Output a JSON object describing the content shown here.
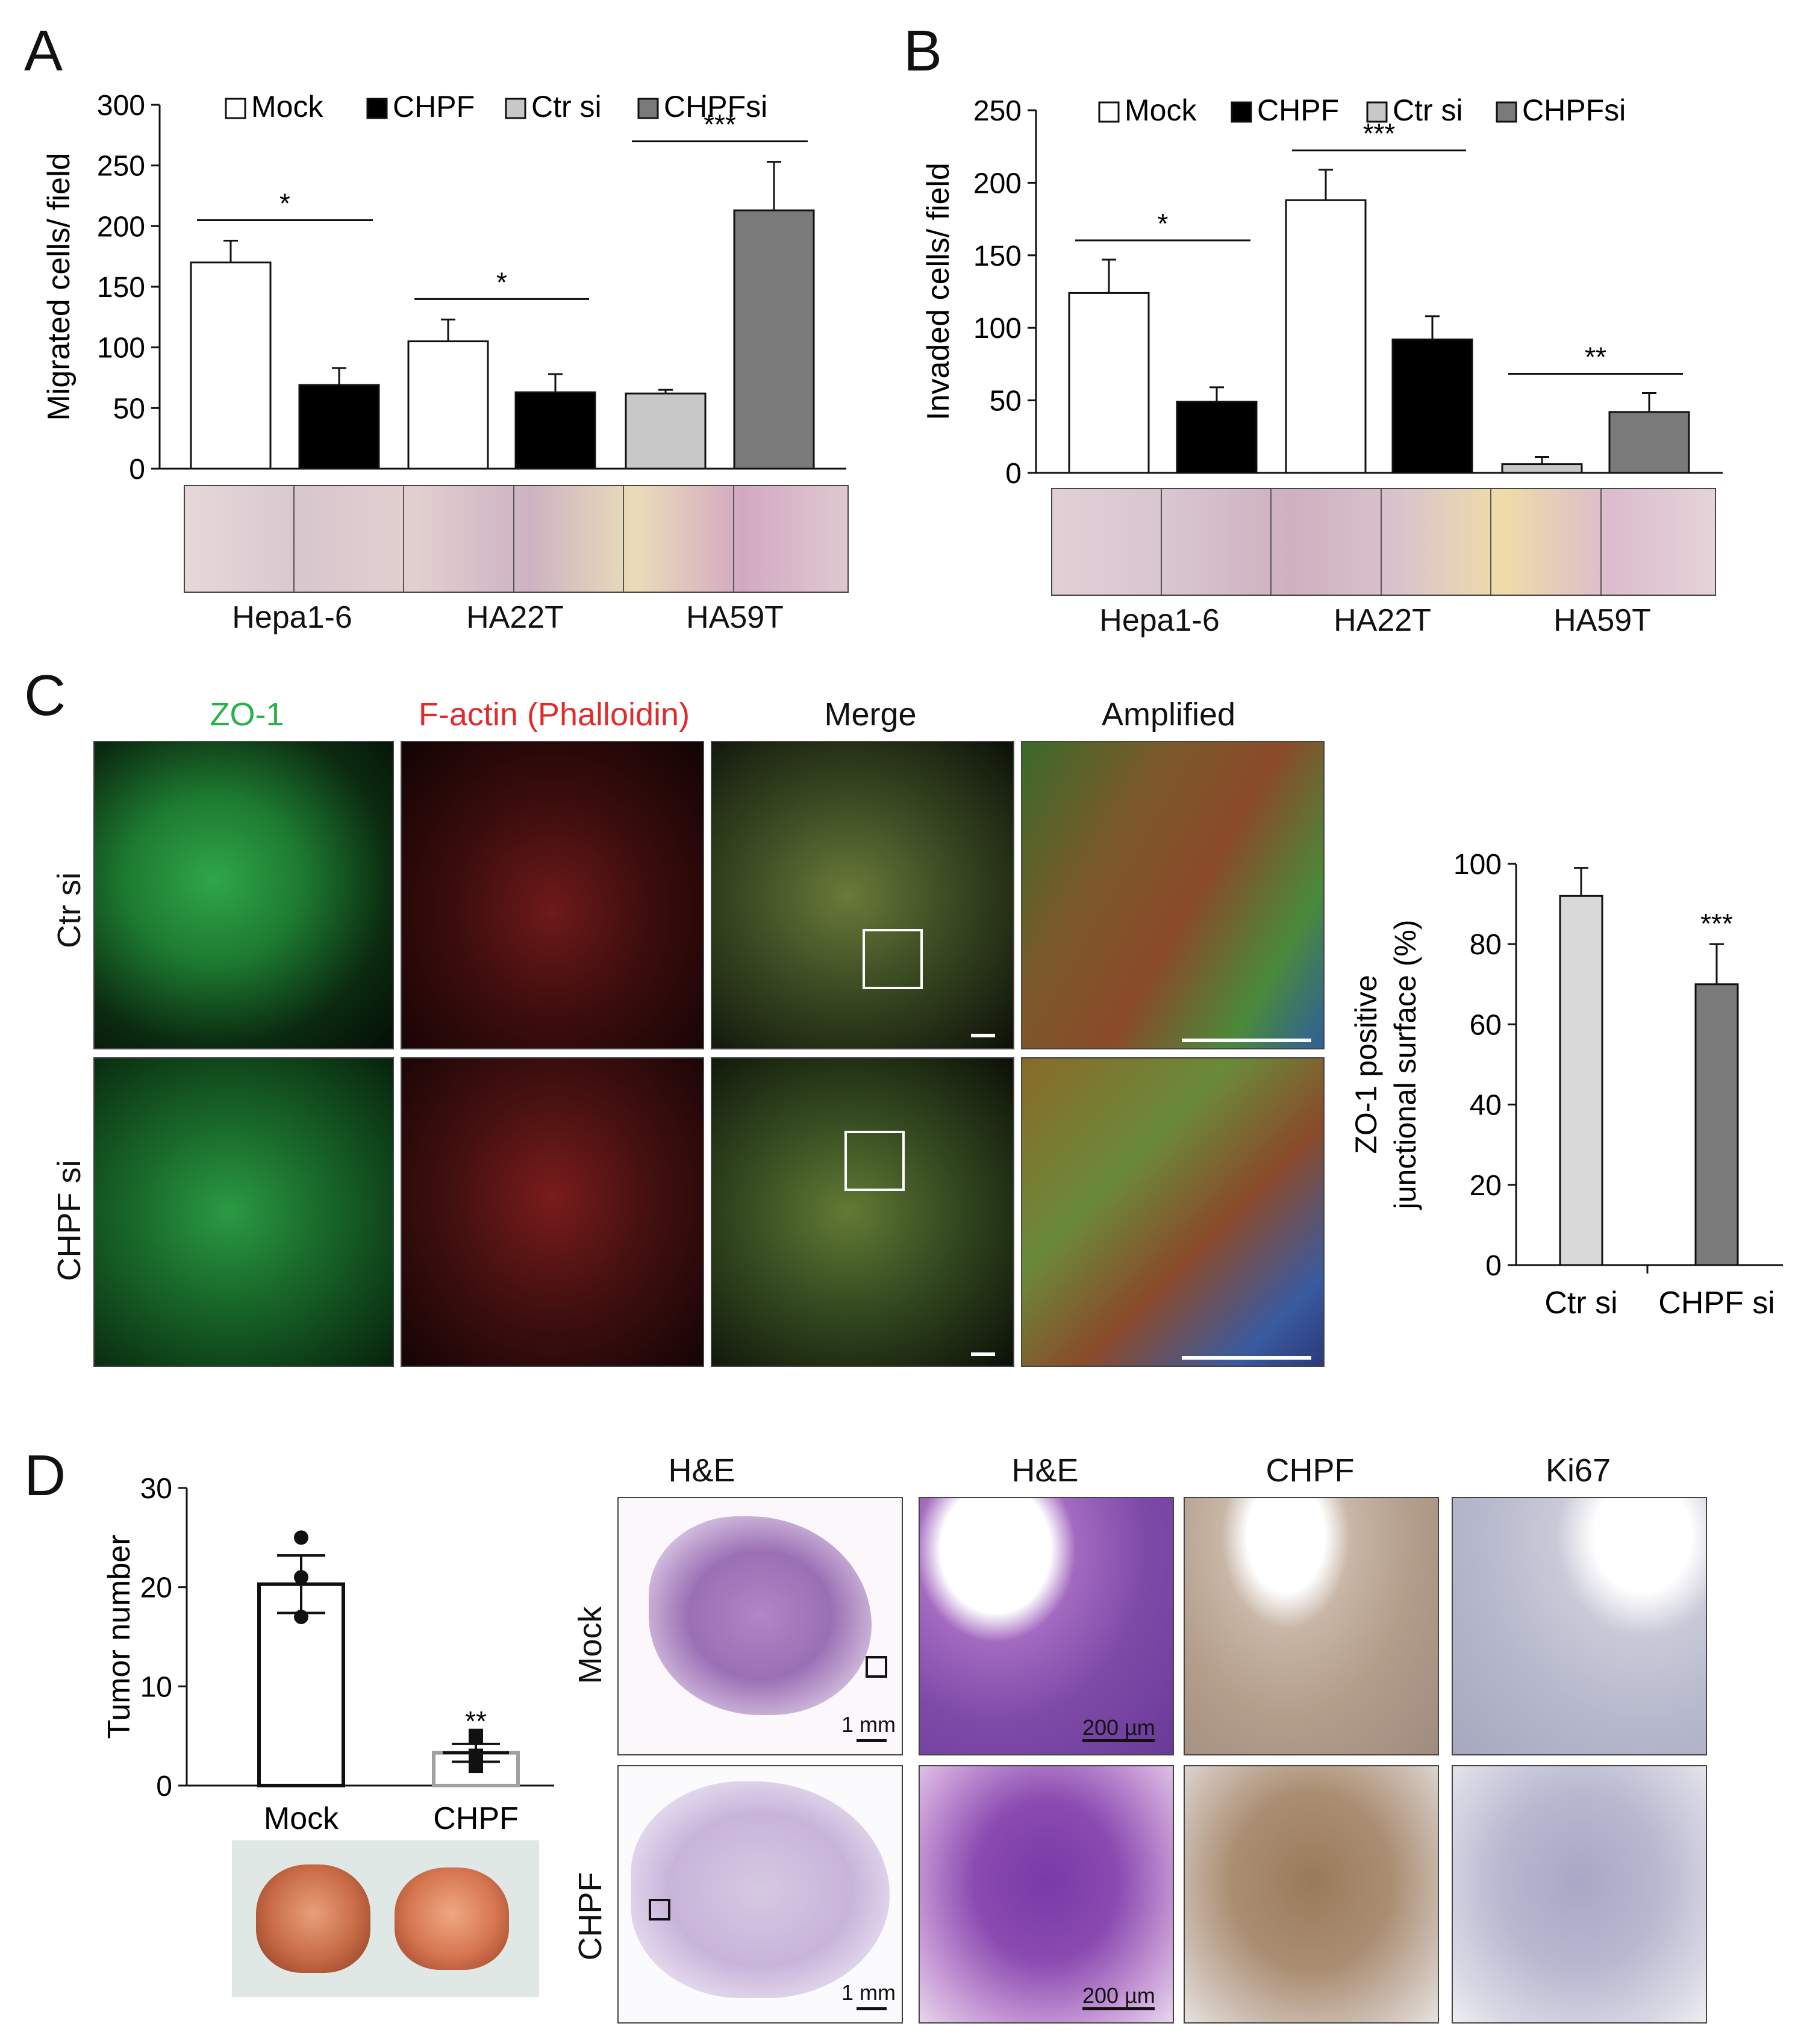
{
  "panels": {
    "a": "A",
    "b": "B",
    "c": "C",
    "d": "D"
  },
  "chart_data": [
    {
      "type": "bar",
      "panel": "A",
      "ylabel": "Migrated cells/ field",
      "ylim": [
        0,
        300
      ],
      "yticks": [
        0,
        50,
        100,
        150,
        200,
        250,
        300
      ],
      "legend": [
        "Mock",
        "CHPF",
        "Ctr si",
        "CHPFsi"
      ],
      "legend_colors": [
        "#ffffff",
        "#000000",
        "#c8c8c8",
        "#7a7a7a"
      ],
      "groups": [
        "Hepa1-6",
        "HA22T",
        "HA59T"
      ],
      "bars": [
        {
          "group": "Hepa1-6",
          "series": "Mock",
          "value": 170,
          "error": 18
        },
        {
          "group": "Hepa1-6",
          "series": "CHPF",
          "value": 69,
          "error": 14
        },
        {
          "group": "HA22T",
          "series": "Mock",
          "value": 105,
          "error": 18
        },
        {
          "group": "HA22T",
          "series": "CHPF",
          "value": 63,
          "error": 15
        },
        {
          "group": "HA59T",
          "series": "Ctr si",
          "value": 62,
          "error": 3
        },
        {
          "group": "HA59T",
          "series": "CHPFsi",
          "value": 213,
          "error": 40
        }
      ],
      "significance": [
        "*",
        "*",
        "***"
      ]
    },
    {
      "type": "bar",
      "panel": "B",
      "ylabel": "Invaded cells/ field",
      "ylim": [
        0,
        250
      ],
      "yticks": [
        0,
        50,
        100,
        150,
        200,
        250
      ],
      "legend": [
        "Mock",
        "CHPF",
        "Ctr si",
        "CHPFsi"
      ],
      "legend_colors": [
        "#ffffff",
        "#000000",
        "#c8c8c8",
        "#7a7a7a"
      ],
      "groups": [
        "Hepa1-6",
        "HA22T",
        "HA59T"
      ],
      "bars": [
        {
          "group": "Hepa1-6",
          "series": "Mock",
          "value": 124,
          "error": 23
        },
        {
          "group": "Hepa1-6",
          "series": "CHPF",
          "value": 49,
          "error": 10
        },
        {
          "group": "HA22T",
          "series": "Mock",
          "value": 188,
          "error": 21
        },
        {
          "group": "HA22T",
          "series": "CHPF",
          "value": 92,
          "error": 16
        },
        {
          "group": "HA59T",
          "series": "Ctr si",
          "value": 6,
          "error": 5
        },
        {
          "group": "HA59T",
          "series": "CHPFsi",
          "value": 42,
          "error": 13
        }
      ],
      "significance": [
        "*",
        "***",
        "**"
      ]
    },
    {
      "type": "bar",
      "panel": "C",
      "ylabel_line1": "ZO-1 positive",
      "ylabel_line2": "junctional surface (%)",
      "ylim": [
        0,
        100
      ],
      "yticks": [
        0,
        20,
        40,
        60,
        80,
        100
      ],
      "categories": [
        "Ctr si",
        "CHPF si"
      ],
      "values": [
        92,
        70
      ],
      "errors": [
        7,
        10
      ],
      "colors": [
        "#d9d9d9",
        "#7a7a7a"
      ],
      "significance": [
        "",
        "***"
      ]
    },
    {
      "type": "bar",
      "panel": "D",
      "ylabel": "Tumor number",
      "ylim": [
        0,
        30
      ],
      "yticks": [
        0,
        10,
        20,
        30
      ],
      "categories": [
        "Mock",
        "CHPF"
      ],
      "values": [
        20.3,
        3.3
      ],
      "errors": [
        2.9,
        0.9
      ],
      "points": [
        [
          25,
          21,
          17
        ],
        [
          5,
          3,
          2
        ]
      ],
      "significance": [
        "",
        "**"
      ]
    }
  ],
  "panel_c": {
    "columns": [
      "ZO-1",
      "F-actin (Phalloidin)",
      "Merge",
      "Amplified"
    ],
    "column_colors": [
      "#27b24a",
      "#e12b2b",
      "#111111",
      "#111111"
    ],
    "rows": [
      "Ctr si",
      "CHPF si"
    ]
  },
  "panel_d": {
    "columns": [
      "H&E",
      "H&E",
      "CHPF",
      "Ki67"
    ],
    "rows": [
      "Mock",
      "CHPF"
    ],
    "scale_low": "1 mm",
    "scale_high": "200 µm"
  }
}
